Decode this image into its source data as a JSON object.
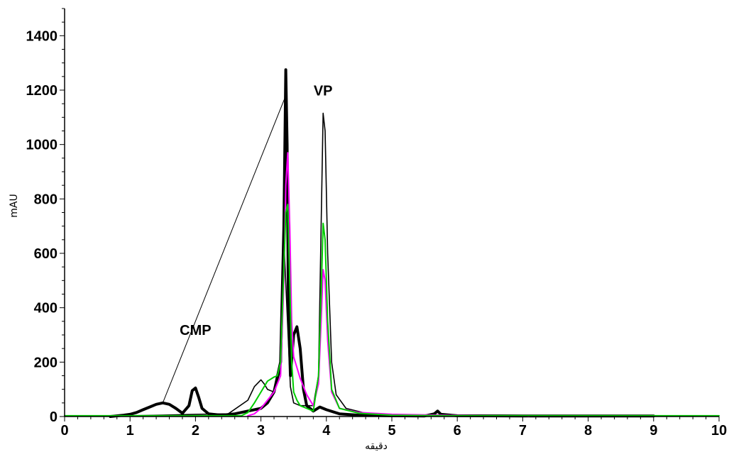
{
  "chart_data": {
    "type": "line",
    "title": "",
    "xlabel": "دقيقه",
    "ylabel": "mAU",
    "xlim": [
      0,
      10
    ],
    "ylim": [
      0,
      1500
    ],
    "x_ticks": [
      0,
      1,
      2,
      3,
      4,
      5,
      6,
      7,
      8,
      9,
      10
    ],
    "y_ticks": [
      0,
      200,
      400,
      600,
      800,
      1000,
      1200,
      1400
    ],
    "grid": false,
    "annotations": [
      {
        "text": "CMP",
        "x": 2.0,
        "y": 300,
        "points_to": [
          1.5,
          50
        ]
      },
      {
        "text": "VP",
        "x": 3.95,
        "y": 1180,
        "points_to": [
          3.38,
          1180
        ]
      }
    ],
    "series": [
      {
        "color": "#000000",
        "emphasis": "bold",
        "x": [
          0.7,
          0.9,
          1.0,
          1.1,
          1.2,
          1.3,
          1.4,
          1.5,
          1.6,
          1.7,
          1.8,
          1.9,
          1.95,
          2.0,
          2.05,
          2.1,
          2.2,
          2.4,
          2.6,
          2.8,
          3.0,
          3.1,
          3.2,
          3.3,
          3.35,
          3.38,
          3.4,
          3.42,
          3.45,
          3.5,
          3.55,
          3.6,
          3.65,
          3.7,
          3.8,
          3.9,
          4.0,
          4.2,
          4.5,
          5.0,
          5.5,
          5.65,
          5.7,
          5.75,
          6.0,
          7.0,
          8.0,
          9.0
        ],
        "y": [
          0,
          5,
          8,
          15,
          25,
          35,
          45,
          50,
          45,
          30,
          12,
          40,
          95,
          105,
          70,
          30,
          10,
          5,
          10,
          20,
          30,
          50,
          90,
          200,
          700,
          1275,
          1000,
          400,
          150,
          300,
          330,
          250,
          100,
          40,
          20,
          35,
          25,
          10,
          5,
          3,
          2,
          10,
          20,
          8,
          3,
          2,
          2,
          2
        ]
      },
      {
        "color": "#000000",
        "emphasis": "thin",
        "x": [
          0.7,
          1.0,
          1.5,
          2.0,
          2.5,
          2.8,
          2.9,
          3.0,
          3.05,
          3.1,
          3.2,
          3.3,
          3.35,
          3.4,
          3.45,
          3.5,
          3.6,
          3.7,
          3.8,
          3.88,
          3.92,
          3.95,
          3.98,
          4.02,
          4.08,
          4.15,
          4.3,
          4.6,
          5.0,
          6.0,
          7.0,
          8.0,
          9.0
        ],
        "y": [
          0,
          3,
          5,
          8,
          10,
          60,
          110,
          135,
          120,
          100,
          90,
          170,
          650,
          380,
          110,
          50,
          40,
          40,
          40,
          150,
          700,
          1115,
          1050,
          600,
          200,
          80,
          30,
          12,
          5,
          3,
          2,
          2,
          2
        ]
      },
      {
        "color": "#ff00ff",
        "emphasis": "normal",
        "x": [
          2.8,
          2.9,
          3.0,
          3.1,
          3.2,
          3.3,
          3.35,
          3.38,
          3.41,
          3.44,
          3.47,
          3.5,
          3.55,
          3.6,
          3.7,
          3.8,
          3.88,
          3.92,
          3.95,
          3.98,
          4.02,
          4.08,
          4.2,
          4.5,
          5.0,
          6.0,
          7.0,
          7.1
        ],
        "y": [
          3,
          10,
          30,
          60,
          90,
          150,
          500,
          850,
          970,
          700,
          350,
          220,
          180,
          140,
          80,
          40,
          120,
          350,
          540,
          500,
          280,
          90,
          30,
          15,
          8,
          4,
          2,
          0
        ]
      },
      {
        "color": "#00cc00",
        "emphasis": "normal",
        "x": [
          0,
          0.3,
          2.7,
          2.8,
          2.9,
          3.0,
          3.1,
          3.2,
          3.25,
          3.3,
          3.35,
          3.38,
          3.41,
          3.44,
          3.47,
          3.5,
          3.55,
          3.6,
          3.7,
          3.8,
          3.88,
          3.92,
          3.95,
          3.98,
          4.02,
          4.08,
          4.2,
          4.5,
          5.0,
          6.0,
          7.0,
          8.0,
          9.0,
          10.0
        ],
        "y": [
          3,
          3,
          3,
          15,
          50,
          90,
          130,
          145,
          150,
          200,
          550,
          750,
          780,
          500,
          200,
          90,
          60,
          40,
          30,
          20,
          150,
          450,
          710,
          650,
          350,
          100,
          30,
          12,
          5,
          3,
          3,
          3,
          3,
          3
        ]
      }
    ]
  }
}
